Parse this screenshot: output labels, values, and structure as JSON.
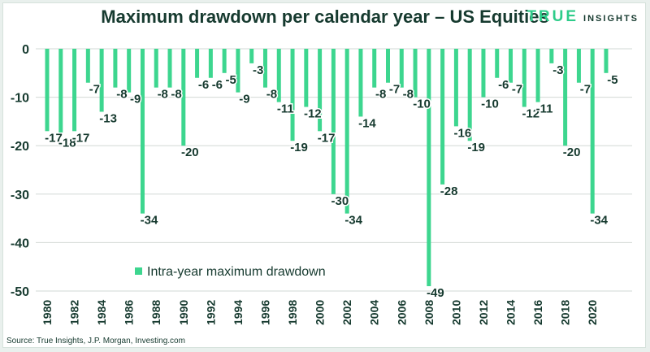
{
  "header": {
    "title": "Maximum drawdown per calendar year – US Equities",
    "brand_word": "TRUE",
    "brand_sub": "INSIGHTS"
  },
  "footer": {
    "source": "Source: True Insights, J.P. Morgan, Investing.com"
  },
  "colors": {
    "bar": "#3dd68f",
    "text": "#163a2f",
    "grid": "#d2d8d5",
    "accent": "#2ecc8a"
  },
  "chart_data": {
    "type": "bar",
    "title": "Maximum drawdown per calendar year – US Equities",
    "xlabel": "",
    "ylabel": "",
    "ylim": [
      -50,
      0
    ],
    "yticks": [
      0,
      -10,
      -20,
      -30,
      -40,
      -50
    ],
    "grid": true,
    "legend_position": "bottom-left",
    "x_tick_labels": [
      "1980",
      "1982",
      "1984",
      "1986",
      "1988",
      "1990",
      "1992",
      "1994",
      "1996",
      "1998",
      "2000",
      "2002",
      "2004",
      "2006",
      "2008",
      "2010",
      "2012",
      "2014",
      "2016",
      "2018",
      "2020"
    ],
    "categories": [
      "1980",
      "1981",
      "1982",
      "1983",
      "1984",
      "1985",
      "1986",
      "1987",
      "1988",
      "1989",
      "1990",
      "1991",
      "1992",
      "1993",
      "1994",
      "1995",
      "1996",
      "1997",
      "1998",
      "1999",
      "2000",
      "2001",
      "2002",
      "2003",
      "2004",
      "2005",
      "2006",
      "2007",
      "2008",
      "2009",
      "2010",
      "2011",
      "2012",
      "2013",
      "2014",
      "2015",
      "2016",
      "2017",
      "2018",
      "2019",
      "2020",
      "2021"
    ],
    "series": [
      {
        "name": "Intra-year maximum drawdown",
        "values": [
          -17,
          -18,
          -17,
          -7,
          -13,
          -8,
          -9,
          -34,
          -8,
          -8,
          -20,
          -6,
          -6,
          -5,
          -9,
          -3,
          -8,
          -11,
          -19,
          -12,
          -17,
          -30,
          -34,
          -14,
          -8,
          -7,
          -8,
          -10,
          -49,
          -28,
          -16,
          -19,
          -10,
          -6,
          -7,
          -12,
          -11,
          -3,
          -20,
          -7,
          -34,
          -5
        ]
      }
    ]
  }
}
